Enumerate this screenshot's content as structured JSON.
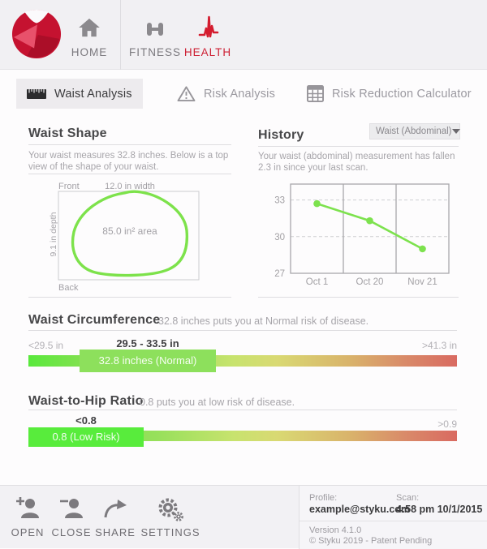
{
  "nav": {
    "items": [
      "HOME",
      "FITNESS",
      "HEALTH"
    ]
  },
  "tabs": [
    "Waist Analysis",
    "Risk Analysis",
    "Risk Reduction Calculator"
  ],
  "waist_shape": {
    "title": "Waist Shape",
    "description": "Your waist measures 32.8 inches. Below is a top view of the shape of your waist.",
    "front_label": "Front",
    "back_label": "Back",
    "width_label": "12.0 in width",
    "depth_label": "9.1 in depth",
    "area_label": "85.0 in² area"
  },
  "history": {
    "title": "History",
    "dropdown_value": "Waist (Abdominal)",
    "description": "Your waist (abdominal) measurement has fallen 2.3 in since your last scan."
  },
  "chart_data": {
    "type": "line",
    "title": "History",
    "x": [
      "Oct 1",
      "Oct 20",
      "Nov 21"
    ],
    "values": [
      32.7,
      31.3,
      29.0
    ],
    "yticks": [
      27,
      30,
      33
    ],
    "ylim": [
      27,
      34.3
    ],
    "grid": "dashed horizontal at yticks, solid vertical column dividers",
    "line_color": "#7de24e"
  },
  "waist_circumference": {
    "title": "Waist Circumference",
    "subtitle": "32.8 inches puts you at Normal risk of disease.",
    "low_label": "<29.5 in",
    "range_label": "29.5 - 33.5 in",
    "high_label": ">41.3 in",
    "value_label": "32.8 inches (Normal)"
  },
  "waist_hip_ratio": {
    "title": "Waist-to-Hip Ratio",
    "subtitle": "0.8 puts you at low risk of disease.",
    "low_label": "<0.8",
    "high_label": ">0.9",
    "value_label": "0.8 (Low Risk)"
  },
  "footer": {
    "actions": [
      "OPEN",
      "CLOSE",
      "SHARE",
      "SETTINGS"
    ],
    "profile_label": "Profile:",
    "profile_value": "example@styku.com",
    "scan_label": "Scan:",
    "scan_value": "4:58 pm 10/1/2015",
    "version": "Version 4.1.0",
    "copyright": "© Styku 2019 - Patent Pending"
  },
  "colors": {
    "accent_red": "#cd1f33",
    "chart_line_green": "#7de24e",
    "normal_segment_green": "#8de05c",
    "low_risk_segment_green": "#58ec3c",
    "gradient_start": "#59e93c",
    "gradient_end": "#d96a61"
  }
}
